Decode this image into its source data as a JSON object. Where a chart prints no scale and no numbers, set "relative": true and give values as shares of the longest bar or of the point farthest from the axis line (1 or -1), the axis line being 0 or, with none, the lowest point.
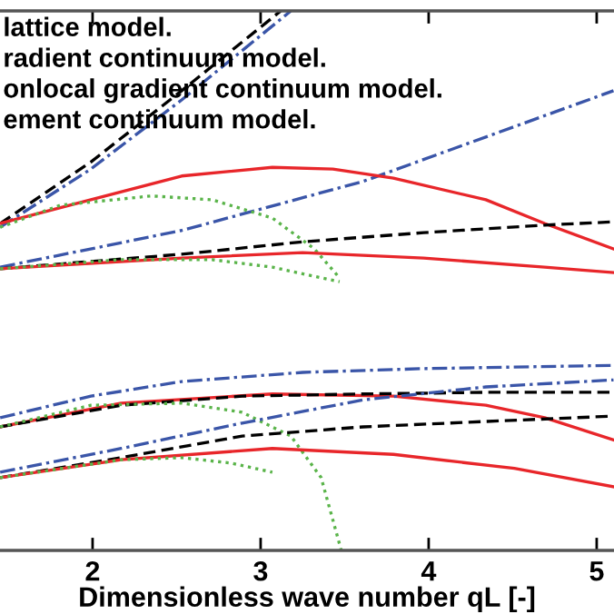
{
  "chart_data": {
    "type": "line",
    "relative": true,
    "xlabel": "Dimensionless wave number qL [-]",
    "xlim": [
      1.449,
      5.103
    ],
    "xticks": [
      2,
      3,
      4,
      5
    ],
    "grid": false,
    "marker": "none",
    "annotations": [
      "lattice model.",
      "radient continuum model.",
      "onlocal gradient continuum model.",
      "ement continuum model."
    ],
    "series": [
      {
        "color": "#000000",
        "line_style": "dashed",
        "x": [
          1.45,
          1.99,
          2.53,
          3.12
        ],
        "values": [
          0.606,
          0.72,
          0.852,
          1.0
        ]
      },
      {
        "color": "#3a55a8",
        "line_style": "dashdot",
        "x": [
          1.45,
          1.99,
          2.53,
          3.18
        ],
        "values": [
          0.599,
          0.707,
          0.835,
          1.0
        ]
      },
      {
        "color": "#3a55a8",
        "line_style": "dashdot",
        "x": [
          1.45,
          2.53,
          3.61,
          5.1
        ],
        "values": [
          0.525,
          0.593,
          0.684,
          0.852
        ]
      },
      {
        "color": "#e8262a",
        "line_style": "solid",
        "x": [
          1.45,
          1.99,
          2.53,
          3.07,
          3.43,
          3.79,
          4.34,
          4.69,
          5.1
        ],
        "values": [
          0.606,
          0.65,
          0.694,
          0.71,
          0.707,
          0.69,
          0.65,
          0.606,
          0.559
        ]
      },
      {
        "color": "#5ab44a",
        "line_style": "dotted",
        "x": [
          1.45,
          1.81,
          2.35,
          2.71,
          3.07,
          3.32,
          3.47
        ],
        "values": [
          0.599,
          0.64,
          0.657,
          0.65,
          0.616,
          0.559,
          0.505
        ]
      },
      {
        "color": "#000000",
        "line_style": "dashed",
        "x": [
          1.45,
          2.53,
          3.25,
          3.97,
          4.69,
          5.1
        ],
        "values": [
          0.522,
          0.549,
          0.572,
          0.589,
          0.603,
          0.609
        ]
      },
      {
        "color": "#e8262a",
        "line_style": "solid",
        "x": [
          1.45,
          2.53,
          3.25,
          3.97,
          4.69,
          5.1
        ],
        "values": [
          0.522,
          0.542,
          0.552,
          0.542,
          0.525,
          0.515
        ]
      },
      {
        "color": "#5ab44a",
        "line_style": "dotted",
        "x": [
          1.45,
          2.17,
          2.71,
          3.07,
          3.47
        ],
        "values": [
          0.522,
          0.539,
          0.539,
          0.525,
          0.498
        ]
      },
      {
        "color": "#3a55a8",
        "line_style": "dashdot",
        "x": [
          1.45,
          1.99,
          2.53,
          3.25,
          3.97,
          5.1
        ],
        "values": [
          0.246,
          0.286,
          0.313,
          0.33,
          0.337,
          0.343
        ]
      },
      {
        "color": "#e8262a",
        "line_style": "solid",
        "x": [
          1.45,
          2.17,
          3.07,
          3.79,
          4.34,
          4.69,
          5.1
        ],
        "values": [
          0.229,
          0.273,
          0.29,
          0.286,
          0.269,
          0.246,
          0.205
        ]
      },
      {
        "color": "#000000",
        "line_style": "dashed",
        "x": [
          1.45,
          2.17,
          2.89,
          3.61,
          4.34,
          5.1
        ],
        "values": [
          0.229,
          0.269,
          0.286,
          0.29,
          0.293,
          0.293
        ]
      },
      {
        "color": "#5ab44a",
        "line_style": "dotted",
        "x": [
          1.45,
          1.99,
          2.53,
          2.89,
          3.18,
          3.36,
          3.48
        ],
        "values": [
          0.229,
          0.269,
          0.273,
          0.256,
          0.212,
          0.135,
          0.0
        ]
      },
      {
        "color": "#3a55a8",
        "line_style": "dashdot",
        "x": [
          1.45,
          2.17,
          2.89,
          3.61,
          4.34,
          5.1
        ],
        "values": [
          0.145,
          0.189,
          0.236,
          0.279,
          0.303,
          0.316
        ]
      },
      {
        "color": "#000000",
        "line_style": "dashed",
        "x": [
          1.45,
          2.17,
          2.89,
          3.61,
          4.34,
          5.1
        ],
        "values": [
          0.135,
          0.172,
          0.212,
          0.229,
          0.239,
          0.249
        ]
      },
      {
        "color": "#e8262a",
        "line_style": "solid",
        "x": [
          1.45,
          2.17,
          3.07,
          3.79,
          4.51,
          5.1
        ],
        "values": [
          0.135,
          0.168,
          0.189,
          0.178,
          0.152,
          0.118
        ]
      },
      {
        "color": "#5ab44a",
        "line_style": "dotted",
        "x": [
          1.45,
          2.17,
          2.53,
          2.82,
          3.07
        ],
        "values": [
          0.135,
          0.168,
          0.172,
          0.162,
          0.145
        ]
      }
    ]
  }
}
